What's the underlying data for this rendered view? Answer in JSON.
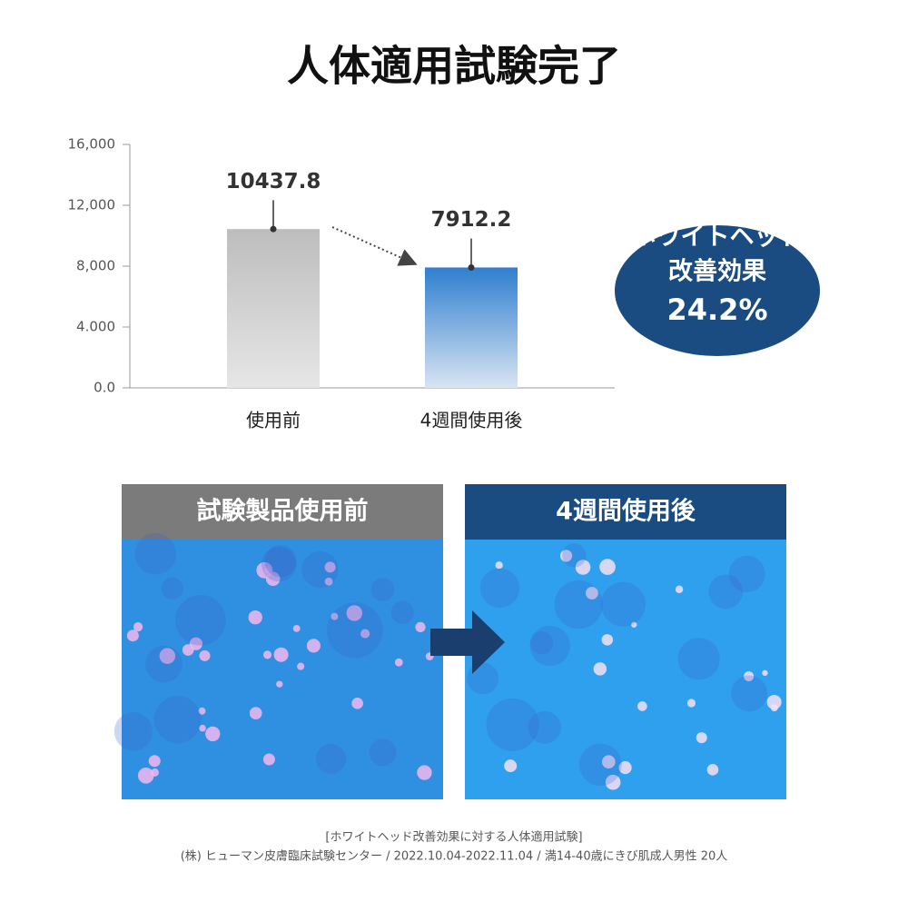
{
  "chart_data": {
    "type": "bar",
    "title": "人体適用試験完了",
    "categories": [
      "使用前",
      "4週間使用後"
    ],
    "values": [
      10437.8,
      7912.2
    ],
    "errors": [
      1900,
      1900
    ],
    "colors": [
      "#bdbdbd",
      "#2f7fd0"
    ],
    "ylim": [
      0,
      16000
    ],
    "yticks": [
      {
        "value": 0,
        "label": "0.0"
      },
      {
        "value": 4000,
        "label": "4.000"
      },
      {
        "value": 8000,
        "label": "8,000"
      },
      {
        "value": 12000,
        "label": "12,000"
      },
      {
        "value": 16000,
        "label": "16,000"
      }
    ],
    "grid": false
  },
  "badge": {
    "lines": [
      "ホワイトヘッド",
      "改善効果",
      "24.2%"
    ]
  },
  "panels": [
    {
      "label": "試験製品使用前"
    },
    {
      "label": "4週間使用後"
    }
  ],
  "footnote": [
    "[ホワイトヘッド改善効果に対する人体適用試験]",
    "(株) ヒューマン皮膚臨床試験センター / 2022.10.04-2022.11.04 / 満14-40歳にきび肌成人男性 20人"
  ]
}
